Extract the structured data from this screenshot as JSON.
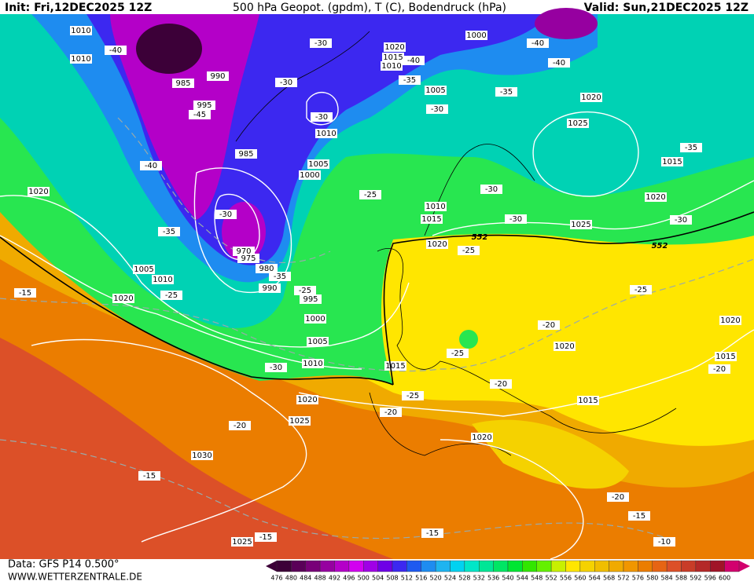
{
  "header": {
    "init": "Init: Fri,12DEC2025 12Z",
    "title": "500 hPa Geopot. (gpdm), T (C), Bodendruck (hPa)",
    "valid": "Valid: Sun,21DEC2025 12Z"
  },
  "footer": {
    "data": "Data: GFS P14 0.500°",
    "site": "WWW.WETTERZENTRALE.DE"
  },
  "colorbar": {
    "values": [
      476,
      480,
      484,
      488,
      492,
      496,
      500,
      504,
      508,
      512,
      516,
      520,
      524,
      528,
      532,
      536,
      540,
      544,
      548,
      552,
      556,
      560,
      564,
      568,
      572,
      576,
      580,
      584,
      588,
      592,
      596,
      600
    ],
    "colors": [
      "#3c0038",
      "#5a0058",
      "#780078",
      "#9600a0",
      "#b400c8",
      "#d200f0",
      "#a000e6",
      "#6e00e6",
      "#3c28f0",
      "#1e5af0",
      "#1e8cf0",
      "#1eb4f0",
      "#00d2f0",
      "#00e6c8",
      "#00e696",
      "#00e664",
      "#00e632",
      "#32e600",
      "#64f000",
      "#c8f000",
      "#ffe600",
      "#f5d200",
      "#f0be00",
      "#f0aa00",
      "#f09600",
      "#eb7d00",
      "#e66414",
      "#dc5028",
      "#c83c28",
      "#b42828",
      "#a01428",
      "#d2006e"
    ]
  },
  "labels": [
    "1010",
    "1010",
    "-40",
    "985",
    "990",
    "995",
    "-45",
    "-40",
    "1020",
    "-35",
    "-30",
    "985",
    "1005",
    "1000",
    "970",
    "975",
    "980",
    "990",
    "-25",
    "995",
    "-35",
    "1005",
    "1010",
    "1020",
    "-15",
    "-25",
    "1000",
    "1005",
    "1010",
    "-30",
    "1015",
    "-25",
    "1020",
    "-20",
    "1025",
    "-20",
    "1030",
    "-15",
    "1025",
    "-15",
    "-15",
    "1020",
    "-20",
    "1015",
    "-20",
    "1020",
    "-25",
    "1015",
    "-20",
    "1020",
    "-25",
    "-20",
    "-15",
    "-10",
    "1020",
    "1015",
    "1010",
    "-25",
    "1025",
    "-30",
    "-30",
    "1020",
    "1015",
    "-35",
    "1025",
    "1020",
    "-40",
    "-40",
    "1000",
    "1020",
    "1015",
    "1010",
    "-40",
    "-35",
    "1005",
    "-30",
    "-35",
    "-30",
    "-30",
    "-30",
    "1010",
    "-25",
    "-30",
    "552",
    "552"
  ]
}
